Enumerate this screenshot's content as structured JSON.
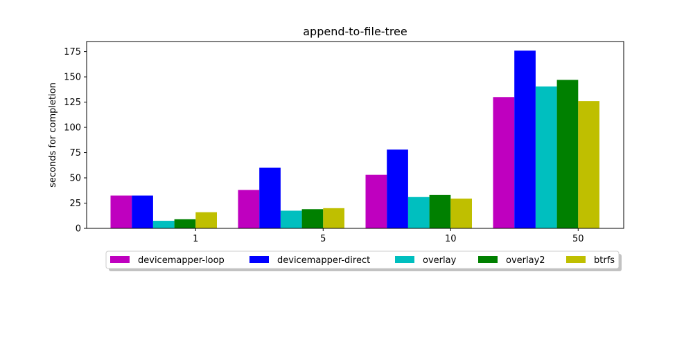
{
  "chart_data": {
    "type": "bar",
    "title": "append-to-file-tree",
    "xlabel": "",
    "ylabel": "seconds for completion",
    "categories": [
      "1",
      "5",
      "10",
      "50"
    ],
    "ylim": [
      0,
      185
    ],
    "yticks": [
      0,
      25,
      50,
      75,
      100,
      125,
      150,
      175
    ],
    "grid": false,
    "legend_position": "bottom-center",
    "series": [
      {
        "name": "devicemapper-loop",
        "color": "#bf00bf",
        "values": [
          32.5,
          38,
          53,
          130
        ]
      },
      {
        "name": "devicemapper-direct",
        "color": "#0000ff",
        "values": [
          32.5,
          60,
          78,
          176
        ]
      },
      {
        "name": "overlay",
        "color": "#00bfbf",
        "values": [
          7.5,
          17.5,
          31,
          140.5
        ]
      },
      {
        "name": "overlay2",
        "color": "#008000",
        "values": [
          9,
          19,
          33,
          147
        ]
      },
      {
        "name": "btrfs",
        "color": "#bfbf00",
        "values": [
          16,
          20,
          29.5,
          126
        ]
      }
    ]
  }
}
